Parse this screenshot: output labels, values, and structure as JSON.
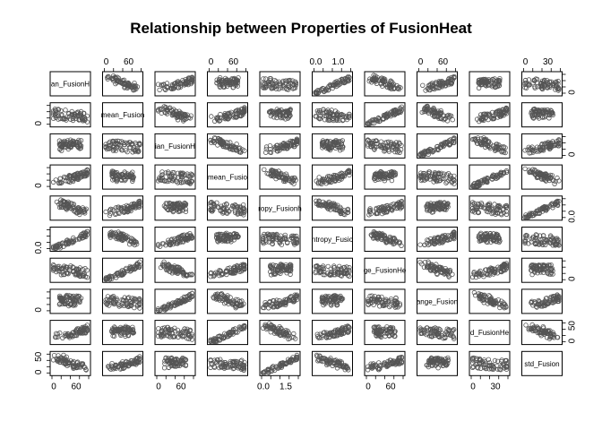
{
  "chart_data": {
    "type": "scatter",
    "title": "Relationship between Properties of FusionHeat",
    "variables": [
      "mean_FusionHeat",
      "wtd_mean_FusionHeat",
      "gmean_FusionHeat",
      "wtd_gmean_FusionHeat",
      "entropy_FusionHeat",
      "wtd_entropy_FusionHeat",
      "range_FusionHeat",
      "wtd_range_FusionHeat",
      "std_FusionHeat",
      "wtd_std_FusionHeat"
    ],
    "diagonal_labels": [
      "an_FusionH",
      "mean_Fusion",
      "ian_FusionH",
      "mean_Fusio",
      "ropy_Fusionh",
      "ntropy_Fusio",
      "ge_FusionHe",
      "ange_Fusion",
      "d_FusionHe",
      "std_Fusion"
    ],
    "axes": {
      "top": [
        {
          "col": 1,
          "ticks": [
            "0",
            "60"
          ]
        },
        {
          "col": 3,
          "ticks": [
            "0",
            "60"
          ]
        },
        {
          "col": 5,
          "ticks": [
            "0.0",
            "1.0"
          ]
        },
        {
          "col": 7,
          "ticks": [
            "0",
            "60"
          ]
        },
        {
          "col": 9,
          "ticks": [
            "0",
            "30"
          ]
        }
      ],
      "bottom": [
        {
          "col": 0,
          "ticks": [
            "0",
            "60"
          ]
        },
        {
          "col": 2,
          "ticks": [
            "0",
            "60"
          ]
        },
        {
          "col": 4,
          "ticks": [
            "0.0",
            "1.5"
          ]
        },
        {
          "col": 6,
          "ticks": [
            "0",
            "60"
          ]
        },
        {
          "col": 8,
          "ticks": [
            "0",
            "30"
          ]
        }
      ],
      "left": [
        {
          "row": 1,
          "ticks": [
            "0"
          ]
        },
        {
          "row": 3,
          "ticks": [
            "0"
          ]
        },
        {
          "row": 5,
          "ticks": [
            "0.0"
          ]
        },
        {
          "row": 7,
          "ticks": [
            "0"
          ]
        },
        {
          "row": 9,
          "ticks": [
            "0",
            "50"
          ]
        }
      ],
      "right": [
        {
          "row": 0,
          "ticks": [
            "0"
          ]
        },
        {
          "row": 2,
          "ticks": [
            "0"
          ]
        },
        {
          "row": 4,
          "ticks": [
            "0.0"
          ]
        },
        {
          "row": 6,
          "ticks": [
            "0"
          ]
        },
        {
          "row": 8,
          "ticks": [
            "0",
            "50"
          ]
        }
      ]
    },
    "point_color": "#555555",
    "marker": "open-circle"
  }
}
